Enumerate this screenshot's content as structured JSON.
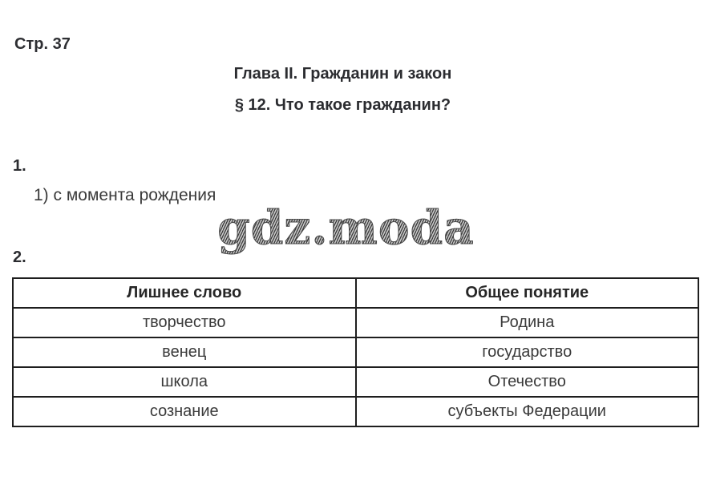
{
  "page": {
    "page_label": "Стр. 37",
    "chapter_title": "Глава II. Гражданин и закон",
    "section_title": "§ 12. Что такое гражданин?",
    "watermark": "gdz.moda"
  },
  "task1": {
    "number": "1.",
    "answer": "1) с момента рождения"
  },
  "task2": {
    "number": "2.",
    "table": {
      "headers": [
        "Лишнее слово",
        "Общее понятие"
      ],
      "rows": [
        [
          "творчество",
          "Родина"
        ],
        [
          "венец",
          "государство"
        ],
        [
          "школа",
          "Отечество"
        ],
        [
          "сознание",
          "субъекты Федерации"
        ]
      ]
    }
  },
  "colors": {
    "background": "#ffffff",
    "text": "#3a3a3a",
    "heading_text": "#2b2c30",
    "table_border": "#1e1e1e",
    "watermark": "#555555"
  }
}
